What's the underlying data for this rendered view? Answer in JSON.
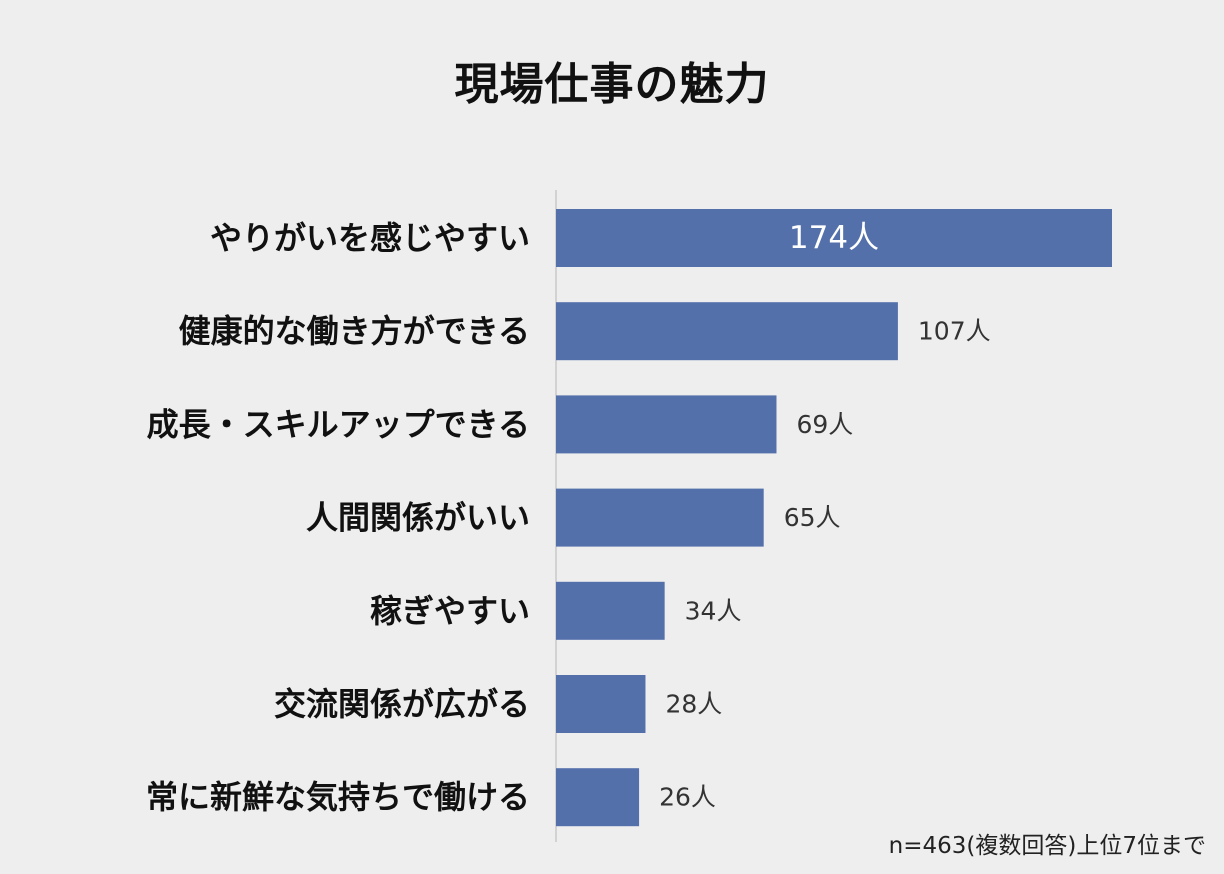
{
  "chart_data": {
    "type": "bar",
    "orientation": "horizontal",
    "title": "現場仕事の魅力",
    "categories": [
      "やりがいを感じやすい",
      "健康的な働き方ができる",
      "成長・スキルアップできる",
      "人間関係がいい",
      "稼ぎやすい",
      "交流関係が広がる",
      "常に新鮮な気持ちで働ける"
    ],
    "values": [
      174,
      107,
      69,
      65,
      34,
      28,
      26
    ],
    "value_labels": [
      "174人",
      "107人",
      "69人",
      "65人",
      "34人",
      "28人",
      "26人"
    ],
    "xlim": [
      0,
      174
    ],
    "grid": false,
    "legend": "none",
    "note": "n=463(複数回答)上位7位まで"
  },
  "colors": {
    "bar": "#5470ab",
    "background": "#eeeeee",
    "axis": "#c8c8c8"
  }
}
